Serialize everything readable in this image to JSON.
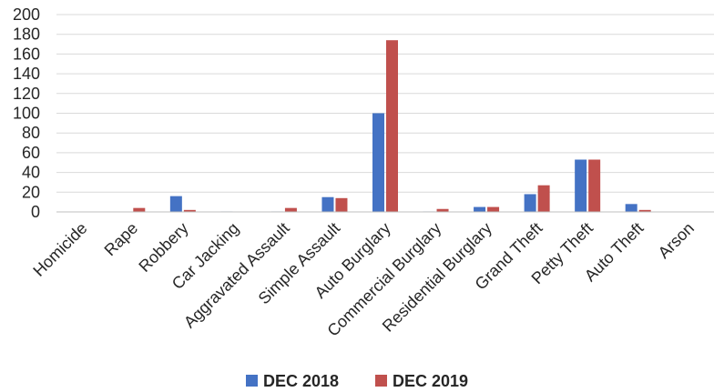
{
  "chart_data": {
    "type": "bar",
    "title": "",
    "xlabel": "",
    "ylabel": "",
    "ylim": [
      0,
      200
    ],
    "yticks": [
      0,
      20,
      40,
      60,
      80,
      100,
      120,
      140,
      160,
      180,
      200
    ],
    "grid": true,
    "legend_position": "bottom",
    "categories": [
      "Homicide",
      "Rape",
      "Robbery",
      "Car Jacking",
      "Aggravated Assault",
      "Simple Assault",
      "Auto Burglary",
      "Commercial Burglary",
      "Residential Burglary",
      "Grand Theft",
      "Petty Theft",
      "Auto Theft",
      "Arson"
    ],
    "series": [
      {
        "name": "DEC 2018",
        "color": "#4472C4",
        "values": [
          0,
          0,
          16,
          0.5,
          0.5,
          15,
          100,
          0.5,
          5,
          18,
          53,
          8,
          0
        ]
      },
      {
        "name": "DEC 2019",
        "color": "#C0504D",
        "values": [
          0,
          4,
          2,
          0,
          4,
          14,
          174,
          3,
          5,
          27,
          53,
          2,
          0
        ]
      }
    ]
  }
}
